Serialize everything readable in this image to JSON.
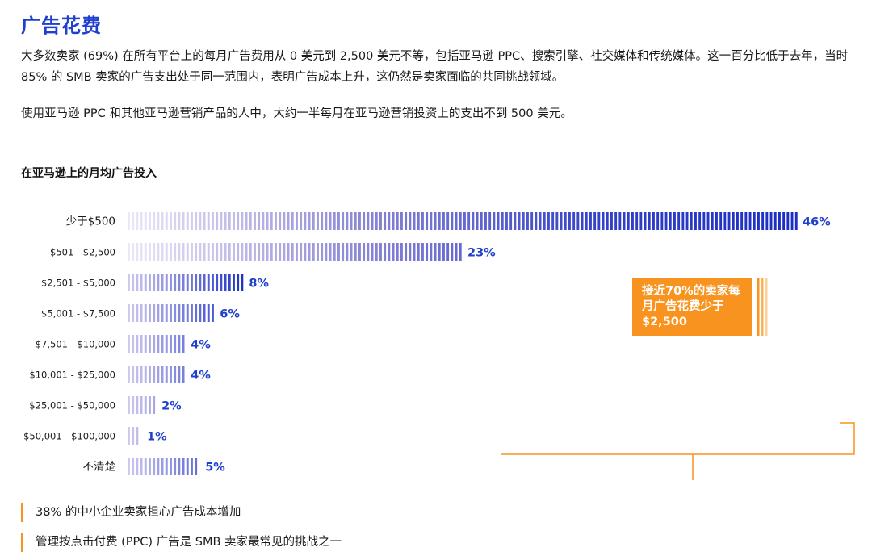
{
  "title": "广告花费",
  "paragraphs": [
    "大多数卖家 (69%) 在所有平台上的每月广告费用从 0 美元到 2,500 美元不等，包括亚马逊 PPC、搜索引擎、社交媒体和传统媒体。这一百分比低于去年，当时 85% 的 SMB 卖家的广告支出处于同一范围内，表明广告成本上升，这仍然是卖家面临的共同挑战领域。",
    "使用亚马逊 PPC 和其他亚马逊营销产品的人中，大约一半每月在亚马逊营销投资上的支出不到 500 美元。"
  ],
  "chart_title": "在亚马逊上的月均广告投入",
  "chart_data": {
    "type": "bar",
    "orientation": "horizontal",
    "title": "在亚马逊上的月均广告投入",
    "categories": [
      "少于$500",
      "$501 - $2,500",
      "$2,501 - $5,000",
      "$5,001 - $7,500",
      "$7,501 - $10,000",
      "$10,001 - $25,000",
      "$25,001 - $50,000",
      "$50,001 - $100,000",
      "不清楚"
    ],
    "values": [
      46,
      23,
      8,
      6,
      4,
      4,
      2,
      1,
      5
    ],
    "labels": [
      "46%",
      "23%",
      "8%",
      "6%",
      "4%",
      "4%",
      "2%",
      "1%",
      "5%"
    ],
    "unit": "%",
    "xlabel": "",
    "ylabel": "",
    "legend": "none",
    "grid": false,
    "bar_style": "striped gradient"
  },
  "callout": {
    "text": "接近70%的卖家每月广告花费少于$2,500"
  },
  "notes": [
    "38% 的中小企业卖家担心广告成本增加",
    "管理按点击付费 (PPC) 广告是 SMB 卖家最常见的挑战之一"
  ],
  "colors": {
    "accent_blue": "#1f3fcf",
    "bar_dark": "#1a2dc4",
    "bar_light": "#e6e3f6",
    "orange": "#f7931e"
  }
}
